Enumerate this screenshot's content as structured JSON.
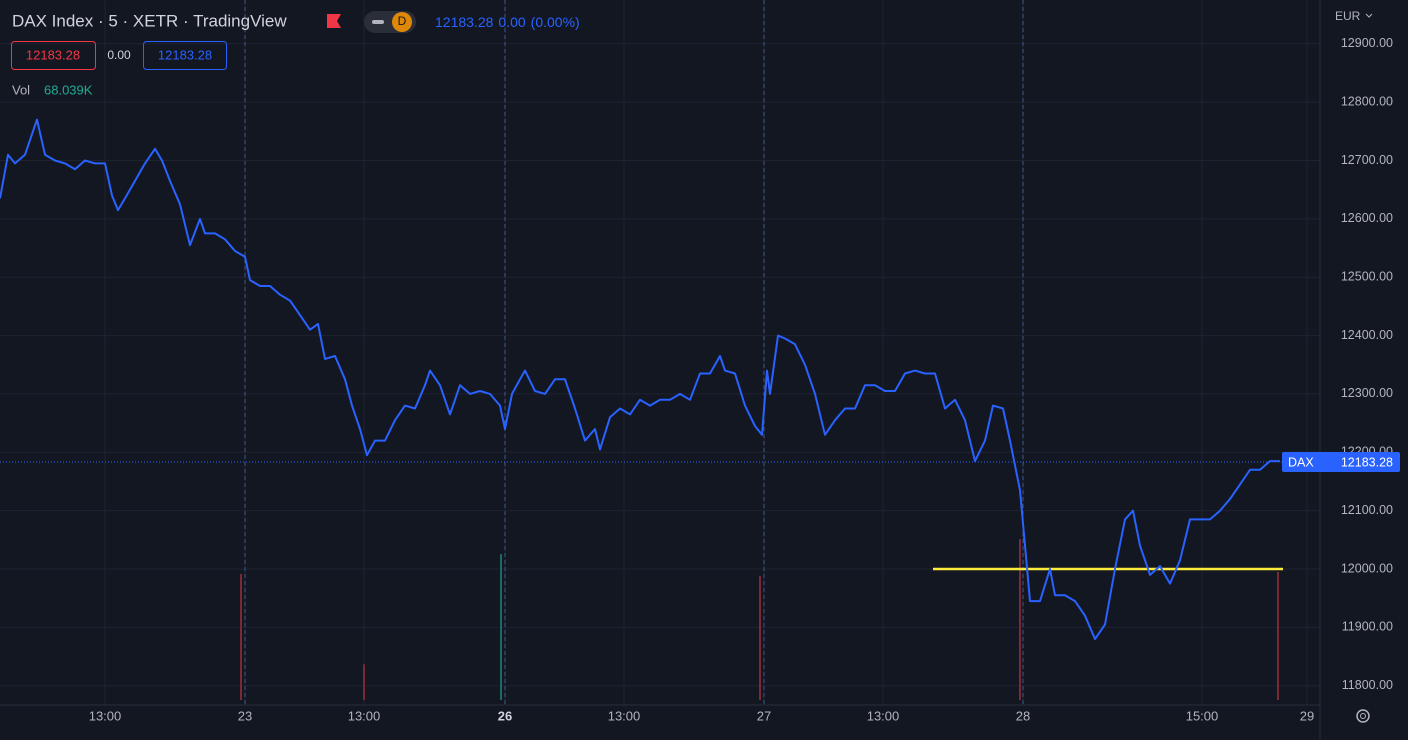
{
  "header": {
    "title": "DAX Index · 5 · XETR · TradingView",
    "badge": "D",
    "quote_last": "12183.28",
    "quote_change": "0.00",
    "quote_change_pct": "(0.00%)",
    "bid": "12183.28",
    "spread": "0.00",
    "ask": "12183.28",
    "volume_label": "Vol",
    "volume_value": "68.039K",
    "currency": "EUR"
  },
  "chart_data": {
    "type": "line",
    "x": [
      0,
      8,
      15,
      25,
      30,
      37,
      45,
      55,
      65,
      75,
      85,
      95,
      105,
      112,
      118,
      125,
      135,
      145,
      155,
      162,
      170,
      180,
      190,
      200,
      205,
      215,
      225,
      235,
      245,
      250,
      260,
      270,
      280,
      290,
      300,
      310,
      318,
      325,
      335,
      345,
      352,
      360,
      367,
      375,
      385,
      395,
      405,
      415,
      425,
      430,
      440,
      450,
      460,
      470,
      480,
      490,
      500,
      505,
      512,
      520,
      525,
      535,
      545,
      555,
      565,
      575,
      585,
      595,
      600,
      610,
      620,
      630,
      640,
      650,
      660,
      670,
      680,
      690,
      700,
      710,
      720,
      725,
      735,
      745,
      755,
      762,
      767,
      770,
      778,
      785,
      795,
      805,
      815,
      825,
      835,
      845,
      855,
      865,
      875,
      885,
      895,
      905,
      915,
      925,
      935,
      945,
      955,
      965,
      975,
      985,
      993,
      1003,
      1010,
      1020,
      1025,
      1030,
      1040,
      1050,
      1055,
      1065,
      1075,
      1085,
      1095,
      1105,
      1115,
      1125,
      1133,
      1140,
      1150,
      1160,
      1170,
      1180,
      1190,
      1200,
      1210,
      1220,
      1230,
      1240,
      1250,
      1260,
      1270,
      1280
    ],
    "series": [
      {
        "name": "DAX",
        "color": "#2962ff",
        "values": [
          12635,
          12710,
          12695,
          12710,
          12735,
          12770,
          12710,
          12700,
          12695,
          12685,
          12700,
          12695,
          12695,
          12640,
          12615,
          12635,
          12665,
          12695,
          12720,
          12700,
          12665,
          12625,
          12555,
          12600,
          12575,
          12575,
          12565,
          12545,
          12535,
          12495,
          12485,
          12485,
          12470,
          12460,
          12435,
          12410,
          12420,
          12360,
          12365,
          12325,
          12280,
          12240,
          12195,
          12220,
          12220,
          12255,
          12280,
          12275,
          12315,
          12340,
          12315,
          12265,
          12315,
          12300,
          12305,
          12300,
          12280,
          12240,
          12300,
          12325,
          12340,
          12305,
          12300,
          12325,
          12325,
          12275,
          12220,
          12240,
          12205,
          12260,
          12275,
          12265,
          12290,
          12280,
          12290,
          12290,
          12300,
          12290,
          12335,
          12335,
          12365,
          12340,
          12335,
          12280,
          12245,
          12230,
          12340,
          12300,
          12400,
          12395,
          12385,
          12350,
          12300,
          12230,
          12255,
          12275,
          12275,
          12315,
          12315,
          12305,
          12305,
          12335,
          12340,
          12335,
          12335,
          12275,
          12290,
          12255,
          12185,
          12220,
          12280,
          12275,
          12220,
          12135,
          12040,
          11945,
          11945,
          12000,
          11955,
          11955,
          11945,
          11920,
          11880,
          11905,
          12000,
          12085,
          12100,
          12040,
          11990,
          12005,
          11975,
          12015,
          12085,
          12085,
          12085,
          12100,
          12120,
          12145,
          12170,
          12170,
          12185,
          12185
        ]
      }
    ],
    "xlim": [
      0,
      1320
    ],
    "ylim": [
      11767,
      12975
    ],
    "yticks": [
      {
        "value": 11800,
        "label": "11800.00"
      },
      {
        "value": 11900,
        "label": "11900.00"
      },
      {
        "value": 12000,
        "label": "12000.00"
      },
      {
        "value": 12100,
        "label": "12100.00"
      },
      {
        "value": 12200,
        "label": "12200.00"
      },
      {
        "value": 12300,
        "label": "12300.00"
      },
      {
        "value": 12400,
        "label": "12400.00"
      },
      {
        "value": 12500,
        "label": "12500.00"
      },
      {
        "value": 12600,
        "label": "12600.00"
      },
      {
        "value": 12700,
        "label": "12700.00"
      },
      {
        "value": 12800,
        "label": "12800.00"
      },
      {
        "value": 12900,
        "label": "12900.00"
      }
    ],
    "xticks": [
      {
        "value": 105,
        "label": "13:00"
      },
      {
        "value": 245,
        "label": "23"
      },
      {
        "value": 364,
        "label": "13:00"
      },
      {
        "value": 505,
        "label": "26",
        "bold": true
      },
      {
        "value": 624,
        "label": "13:00"
      },
      {
        "value": 764,
        "label": "27"
      },
      {
        "value": 883,
        "label": "13:00"
      },
      {
        "value": 1023,
        "label": "28"
      },
      {
        "value": 1202,
        "label": "15:00"
      },
      {
        "value": 1307,
        "label": "29"
      }
    ],
    "session_breaks": [
      245,
      505,
      764,
      1023
    ],
    "last_price": 12183.28,
    "hline": {
      "value": 12000,
      "x": [
        933,
        1283
      ],
      "color": "#ffeb3b"
    },
    "volume": {
      "x": [
        241,
        364,
        501,
        760,
        1020,
        1278
      ],
      "values": [
        67000,
        19000,
        77500,
        66000,
        85500,
        68039
      ],
      "colors": [
        "#7a2a33",
        "#7a2a33",
        "#1b6b60",
        "#7a2a33",
        "#7a2a33",
        "#7a2a33"
      ]
    },
    "grid": true
  }
}
